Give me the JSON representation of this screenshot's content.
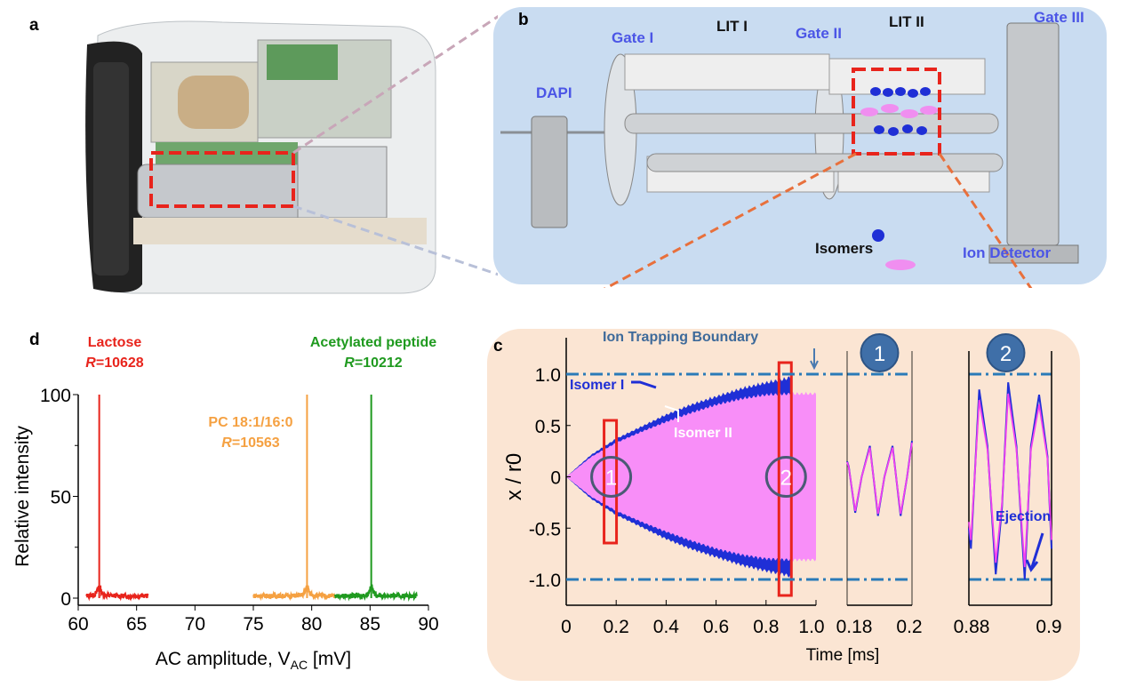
{
  "panel_a": {
    "label": "a"
  },
  "panel_b": {
    "label": "b",
    "components": {
      "gate1": "Gate I",
      "lit1": "LIT I",
      "gate2": "Gate II",
      "lit2": "LIT II",
      "gate3": "Gate III",
      "dapi": "DAPI",
      "isomers": "Isomers",
      "detector": "Ion Detector"
    },
    "colors": {
      "background": "#c9dcf1",
      "label": "#4b55e6",
      "isomer_1": "#1f2fd6",
      "isomer_2": "#f08ef0",
      "highlight": "#e8241c"
    }
  },
  "chart_data": [
    {
      "panel": "c",
      "type": "area",
      "annotation_top": "Ion Trapping Boundary",
      "xlabel": "Time [ms]",
      "ylabel": "x / r0",
      "ylim": [
        -1.25,
        1.25
      ],
      "yticks": [
        "1.0",
        "0.5",
        "0",
        "-0.5",
        "-1.0"
      ],
      "boundary": [
        1.0,
        -1.0
      ],
      "main": {
        "xlim": [
          0,
          1.0
        ],
        "xticks": [
          "0",
          "0.2",
          "0.4",
          "0.6",
          "0.8",
          "1.0"
        ],
        "series": [
          {
            "name": "Isomer I",
            "color": "#1f2fd6",
            "x": [
              0,
              0.1,
              0.2,
              0.3,
              0.4,
              0.5,
              0.6,
              0.7,
              0.8,
              0.88,
              0.9
            ],
            "envelope": [
              0,
              0.22,
              0.38,
              0.5,
              0.62,
              0.72,
              0.8,
              0.88,
              0.94,
              0.98,
              1.0
            ]
          },
          {
            "name": "Isomer II",
            "color": "#f88ef8",
            "x": [
              0,
              0.1,
              0.2,
              0.3,
              0.4,
              0.5,
              0.6,
              0.7,
              0.8,
              0.9,
              1.0
            ],
            "envelope": [
              0,
              0.2,
              0.34,
              0.45,
              0.55,
              0.64,
              0.72,
              0.78,
              0.82,
              0.83,
              0.83
            ]
          }
        ],
        "boxes": [
          {
            "label": "1",
            "x": 0.18
          },
          {
            "label": "2",
            "x": 0.88
          }
        ]
      },
      "inset_1": {
        "label": "1",
        "xlim": [
          0.18,
          0.2
        ],
        "xticks": [
          "0.18",
          "0.2"
        ],
        "x": [
          0.18,
          0.1805,
          0.1825,
          0.1845,
          0.187,
          0.1895,
          0.1915,
          0.194,
          0.1965,
          0.1985,
          0.2
        ],
        "y": [
          0.15,
          0.1,
          -0.35,
          0.0,
          0.3,
          -0.38,
          0.0,
          0.3,
          -0.38,
          0.0,
          0.35
        ]
      },
      "inset_2": {
        "label": "2",
        "xlim": [
          0.88,
          0.9
        ],
        "xticks": [
          "0.88",
          "0.9"
        ],
        "annotation": "Ejection",
        "x": [
          0.88,
          0.8805,
          0.8825,
          0.8845,
          0.8865,
          0.888,
          0.8895,
          0.8915,
          0.8935,
          0.895,
          0.897,
          0.899,
          0.9
        ],
        "y": [
          -0.5,
          -0.7,
          0.85,
          0.3,
          -0.95,
          -0.3,
          0.92,
          0.3,
          -1.0,
          0.3,
          0.8,
          0.2,
          -0.7
        ]
      }
    },
    {
      "panel": "d",
      "type": "line",
      "xlabel": "AC amplitude, V",
      "xlabel_sub": "AC",
      "xlabel_unit": " [mV]",
      "ylabel": "Relative intensity",
      "xlim": [
        60,
        90
      ],
      "ylim": [
        0,
        100
      ],
      "xticks": [
        60,
        65,
        70,
        75,
        80,
        85,
        90
      ],
      "yticks": [
        0,
        50,
        100
      ],
      "series": [
        {
          "name": "Lactose",
          "resolution": "10628",
          "color": "#e8241c",
          "peak_x": 61.8,
          "peak_y": 100,
          "x_range": [
            60.7,
            66.0
          ]
        },
        {
          "name": "PC 18:1/16:0",
          "resolution": "10563",
          "color": "#f5a142",
          "peak_x": 79.6,
          "peak_y": 100,
          "x_range": [
            75.0,
            82.0
          ]
        },
        {
          "name": "Acetylated peptide",
          "resolution": "10212",
          "color": "#1f9a1f",
          "peak_x": 85.1,
          "peak_y": 100,
          "x_range": [
            82.0,
            89.0
          ]
        }
      ],
      "r_prefix": "R",
      "r_sep": "="
    }
  ]
}
